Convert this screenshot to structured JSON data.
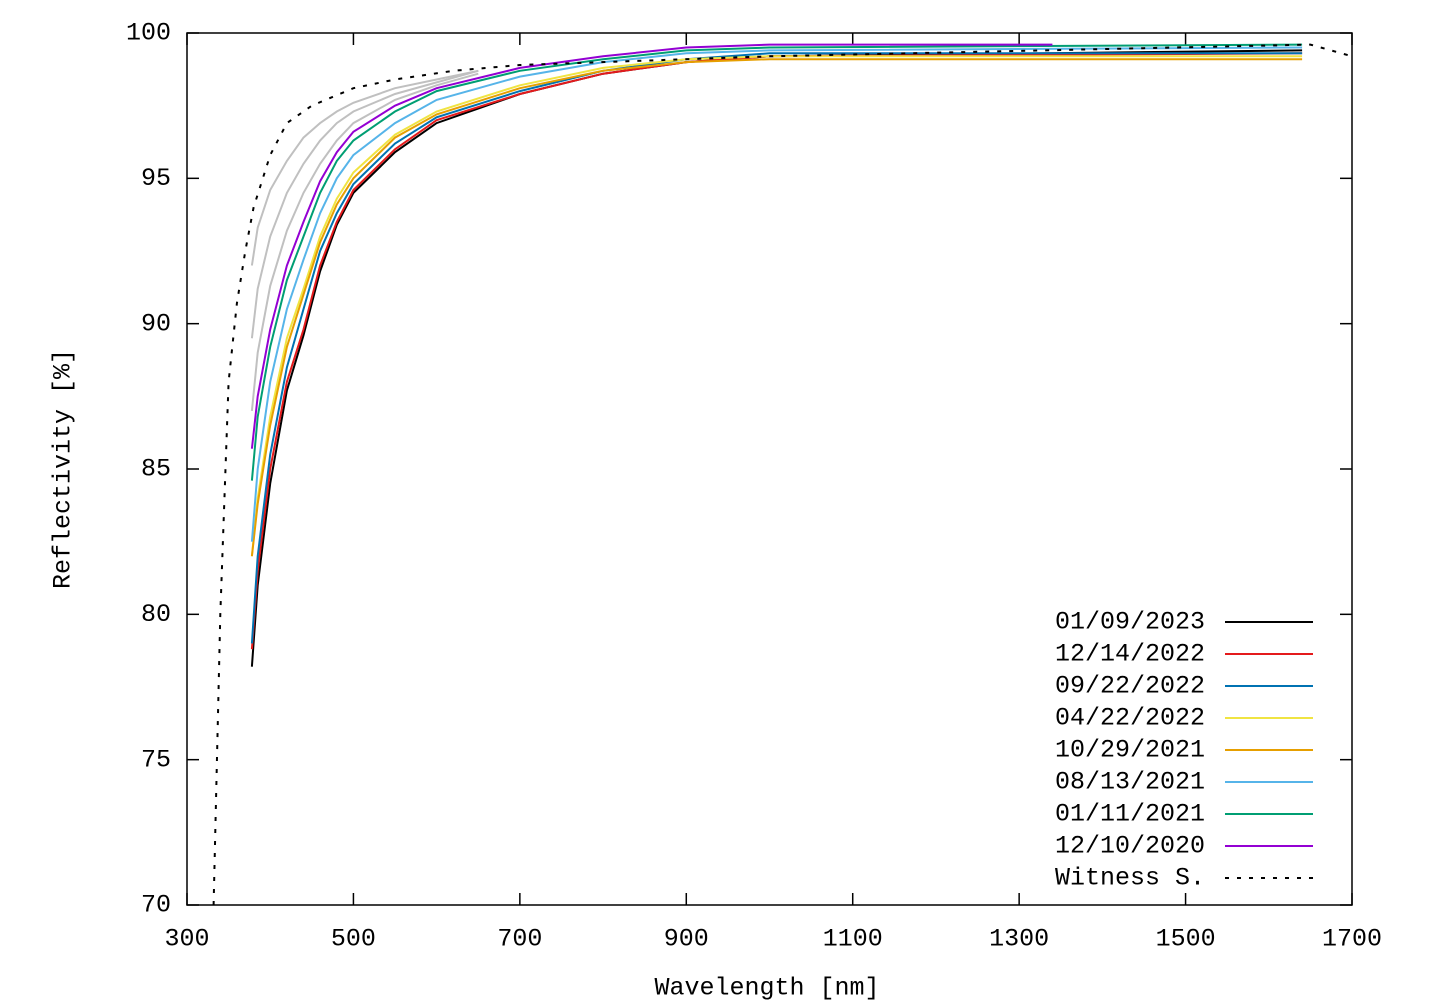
{
  "chart_data": {
    "type": "line",
    "xlabel": "Wavelength [nm]",
    "ylabel": "Reflectivity [%]",
    "xlim": [
      300,
      1700
    ],
    "xticks": [
      300,
      500,
      700,
      900,
      1100,
      1300,
      1500,
      1700
    ],
    "ylim": [
      70,
      100
    ],
    "yticks": [
      70,
      75,
      80,
      85,
      90,
      95,
      100
    ],
    "legend": "lower right",
    "series": [
      {
        "color": "#c0c0c0",
        "x": [
          378,
          385,
          400,
          420,
          440,
          460,
          480,
          500,
          550,
          600,
          650
        ],
        "values": [
          87.0,
          89.0,
          91.3,
          93.2,
          94.5,
          95.5,
          96.3,
          96.9,
          97.7,
          98.2,
          98.6
        ]
      },
      {
        "color": "#c0c0c0",
        "x": [
          378,
          385,
          400,
          420,
          440,
          460,
          480,
          500,
          550,
          600,
          650
        ],
        "values": [
          89.5,
          91.2,
          93.0,
          94.5,
          95.5,
          96.3,
          96.9,
          97.3,
          97.9,
          98.3,
          98.7
        ]
      },
      {
        "color": "#c0c0c0",
        "x": [
          378,
          385,
          400,
          420,
          440,
          460,
          480,
          500,
          550,
          600,
          650
        ],
        "values": [
          92.0,
          93.3,
          94.6,
          95.6,
          96.4,
          96.9,
          97.3,
          97.6,
          98.1,
          98.4,
          98.7
        ]
      },
      {
        "name": "01/09/2023",
        "color": "#000000",
        "x": [
          378,
          385,
          400,
          420,
          440,
          460,
          480,
          500,
          550,
          600,
          700,
          800,
          900,
          1000,
          1640
        ],
        "values": [
          78.2,
          81.0,
          84.5,
          87.7,
          89.6,
          91.8,
          93.4,
          94.5,
          95.9,
          96.9,
          97.9,
          98.6,
          99.0,
          99.2,
          99.4
        ]
      },
      {
        "name": "12/14/2022",
        "color": "#e41a1c",
        "x": [
          378,
          385,
          400,
          420,
          440,
          460,
          480,
          500,
          550,
          600,
          700,
          800,
          900,
          1000,
          1640
        ],
        "values": [
          78.8,
          81.5,
          85.0,
          88.0,
          89.8,
          92.0,
          93.5,
          94.6,
          96.0,
          97.0,
          97.9,
          98.6,
          99.0,
          99.2,
          99.3
        ]
      },
      {
        "name": "09/22/2022",
        "color": "#0072b2",
        "x": [
          378,
          385,
          400,
          420,
          440,
          460,
          480,
          500,
          550,
          600,
          700,
          800,
          900,
          1000,
          1640
        ],
        "values": [
          79.0,
          82.0,
          85.5,
          88.5,
          90.5,
          92.5,
          93.8,
          94.8,
          96.2,
          97.1,
          98.0,
          98.7,
          99.1,
          99.3,
          99.3
        ]
      },
      {
        "name": "04/22/2022",
        "color": "#f0e442",
        "x": [
          378,
          385,
          400,
          420,
          440,
          460,
          480,
          500,
          550,
          600,
          700,
          800,
          900,
          1000,
          1640
        ],
        "values": [
          82.0,
          84.0,
          86.8,
          89.5,
          91.2,
          93.0,
          94.3,
          95.2,
          96.5,
          97.3,
          98.2,
          98.8,
          99.1,
          99.2,
          99.2
        ]
      },
      {
        "name": "10/29/2021",
        "color": "#e69f00",
        "x": [
          378,
          385,
          400,
          420,
          440,
          460,
          480,
          500,
          550,
          600,
          700,
          800,
          900,
          1000,
          1640
        ],
        "values": [
          82.0,
          83.8,
          86.5,
          89.2,
          91.0,
          92.8,
          94.1,
          95.0,
          96.4,
          97.2,
          98.1,
          98.7,
          99.0,
          99.1,
          99.1
        ]
      },
      {
        "name": "08/13/2021",
        "color": "#56b4e9",
        "x": [
          378,
          385,
          400,
          420,
          440,
          460,
          480,
          500,
          550,
          600,
          700,
          800,
          900,
          1000,
          1640
        ],
        "values": [
          82.5,
          85.0,
          88.0,
          90.5,
          92.2,
          93.8,
          95.0,
          95.8,
          96.9,
          97.7,
          98.5,
          99.0,
          99.3,
          99.4,
          99.5
        ]
      },
      {
        "name": "01/11/2021",
        "color": "#009e73",
        "x": [
          378,
          385,
          400,
          420,
          440,
          460,
          480,
          500,
          550,
          600,
          700,
          800,
          900,
          1000,
          1640
        ],
        "values": [
          84.6,
          86.8,
          89.2,
          91.5,
          93.0,
          94.5,
          95.6,
          96.3,
          97.3,
          98.0,
          98.7,
          99.1,
          99.4,
          99.5,
          99.6
        ]
      },
      {
        "name": "12/10/2020",
        "color": "#9400d3",
        "x": [
          378,
          385,
          400,
          420,
          440,
          460,
          480,
          500,
          550,
          600,
          700,
          800,
          900,
          1000,
          1340
        ],
        "values": [
          85.7,
          87.5,
          89.8,
          92.0,
          93.5,
          94.9,
          95.9,
          96.6,
          97.5,
          98.1,
          98.8,
          99.2,
          99.5,
          99.6,
          99.6
        ]
      },
      {
        "name": "Witness S.",
        "color": "#000000",
        "dashed": true,
        "x": [
          332,
          340,
          350,
          360,
          370,
          380,
          400,
          420,
          450,
          500,
          550,
          620,
          700,
          1000,
          1650,
          1700
        ],
        "values": [
          70,
          80,
          88,
          90.7,
          92.5,
          94.0,
          95.8,
          96.9,
          97.5,
          98.1,
          98.4,
          98.7,
          98.9,
          99.2,
          99.6,
          99.2
        ]
      }
    ]
  }
}
